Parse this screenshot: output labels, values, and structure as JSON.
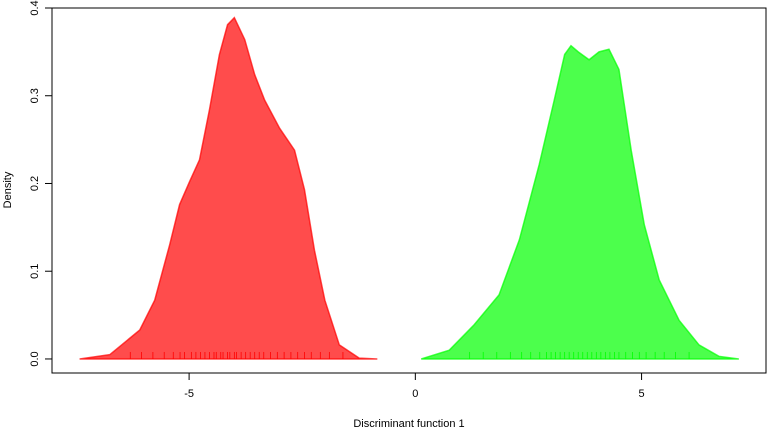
{
  "chart_data": {
    "type": "density",
    "xlabel": "Discriminant function 1",
    "ylabel": "Density",
    "xlim": [
      -8.03,
      7.75
    ],
    "ylim": [
      -0.016,
      0.4
    ],
    "xticks": [
      -5,
      0,
      5
    ],
    "yticks": [
      {
        "value": 0,
        "label": "0.0"
      },
      0.1,
      0.2,
      0.3,
      0.4
    ],
    "fill_opacity": 0.7,
    "series": [
      {
        "color": "#ff0000",
        "x": [
          -7.42,
          -6.75,
          -6.09,
          -5.76,
          -5.43,
          -5.21,
          -4.99,
          -4.77,
          -4.55,
          -4.33,
          -4.15,
          -4.0,
          -3.77,
          -3.55,
          -3.33,
          -3.0,
          -2.67,
          -2.45,
          -2.23,
          -2.0,
          -1.68,
          -1.24,
          -0.84
        ],
        "values": [
          0,
          0.005,
          0.033,
          0.067,
          0.13,
          0.176,
          0.202,
          0.227,
          0.284,
          0.347,
          0.381,
          0.389,
          0.364,
          0.324,
          0.295,
          0.263,
          0.238,
          0.193,
          0.124,
          0.067,
          0.016,
          0.001,
          0
        ],
        "rug": [
          -6.3,
          -6.05,
          -5.8,
          -5.55,
          -5.35,
          -5.2,
          -5.1,
          -4.95,
          -4.85,
          -4.75,
          -4.65,
          -4.55,
          -4.45,
          -4.4,
          -4.3,
          -4.25,
          -4.15,
          -4.1,
          -4.0,
          -3.95,
          -3.85,
          -3.75,
          -3.65,
          -3.55,
          -3.45,
          -3.35,
          -3.2,
          -3.05,
          -2.9,
          -2.75,
          -2.6,
          -2.45,
          -2.3,
          -2.1,
          -1.9,
          -1.6
        ]
      },
      {
        "color": "#00ff00",
        "x": [
          0.13,
          0.75,
          1.3,
          1.85,
          2.3,
          2.74,
          3.07,
          3.3,
          3.44,
          3.6,
          3.84,
          4.06,
          4.28,
          4.5,
          4.77,
          5.06,
          5.39,
          5.83,
          6.27,
          6.71,
          7.15
        ],
        "values": [
          0,
          0.01,
          0.039,
          0.073,
          0.136,
          0.222,
          0.295,
          0.347,
          0.357,
          0.35,
          0.341,
          0.35,
          0.353,
          0.33,
          0.238,
          0.153,
          0.09,
          0.044,
          0.016,
          0.003,
          0
        ],
        "rug": [
          1.2,
          1.5,
          1.8,
          2.1,
          2.35,
          2.55,
          2.75,
          2.9,
          3.0,
          3.1,
          3.2,
          3.3,
          3.4,
          3.5,
          3.6,
          3.7,
          3.8,
          3.9,
          4.0,
          4.1,
          4.2,
          4.3,
          4.4,
          4.5,
          4.65,
          4.8,
          4.95,
          5.1,
          5.3,
          5.5,
          5.75,
          6.05
        ]
      }
    ]
  }
}
